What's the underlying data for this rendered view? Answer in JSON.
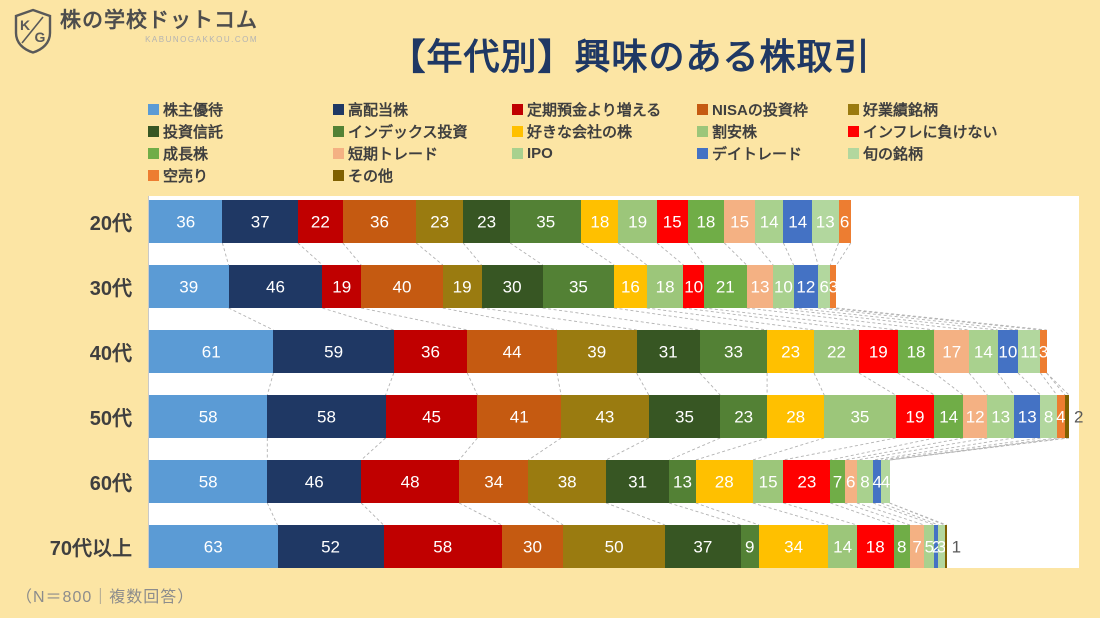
{
  "page": {
    "background_color": "#FCE5A4"
  },
  "logo": {
    "icon": "KG-shield",
    "title": "株の学校ドットコム",
    "subtitle": "KABUNOGAKKOU.COM"
  },
  "title": "【年代別】興味のある株取引",
  "footnote": "（N＝800｜複数回答）",
  "chart_data": {
    "type": "bar",
    "variant": "stacked-horizontal",
    "plot_background": "#FFFFFF",
    "legend_position": "top",
    "legend_columns": 5,
    "value_labels": "inside-center-white; その他 labels shown outside bar end in gray",
    "series_connector_lines": "dashed gray lines linking segment boundaries between rows",
    "categories": [
      "20代",
      "30代",
      "40代",
      "50代",
      "60代",
      "70代以上"
    ],
    "series": [
      {
        "name": "株主優待",
        "color": "#5B9BD5",
        "values": [
          36,
          39,
          61,
          58,
          58,
          63
        ]
      },
      {
        "name": "高配当株",
        "color": "#1F3864",
        "values": [
          37,
          46,
          59,
          58,
          46,
          52
        ]
      },
      {
        "name": "定期預金より増える",
        "color": "#C00000",
        "values": [
          22,
          19,
          36,
          45,
          48,
          58
        ]
      },
      {
        "name": "NISAの投資枠",
        "color": "#C55A11",
        "values": [
          36,
          40,
          44,
          41,
          34,
          30
        ]
      },
      {
        "name": "好業績銘柄",
        "color": "#9A7B10",
        "values": [
          23,
          19,
          39,
          43,
          38,
          50
        ]
      },
      {
        "name": "投資信託",
        "color": "#375623",
        "values": [
          23,
          30,
          31,
          35,
          31,
          37
        ]
      },
      {
        "name": "インデックス投資",
        "color": "#538135",
        "values": [
          35,
          35,
          33,
          23,
          13,
          9
        ]
      },
      {
        "name": "好きな会社の株",
        "color": "#FFC000",
        "values": [
          18,
          16,
          23,
          28,
          28,
          34
        ]
      },
      {
        "name": "割安株",
        "color": "#9CC67A",
        "values": [
          19,
          18,
          22,
          35,
          15,
          14
        ]
      },
      {
        "name": "インフレに負けない",
        "color": "#FF0000",
        "values": [
          15,
          10,
          19,
          19,
          23,
          18
        ]
      },
      {
        "name": "成長株",
        "color": "#70AD47",
        "values": [
          18,
          21,
          18,
          14,
          7,
          8
        ]
      },
      {
        "name": "短期トレード",
        "color": "#F4B183",
        "values": [
          15,
          13,
          17,
          12,
          6,
          7
        ]
      },
      {
        "name": "IPO",
        "color": "#A9D18E",
        "values": [
          14,
          10,
          14,
          13,
          8,
          5
        ]
      },
      {
        "name": "デイトレード",
        "color": "#4472C4",
        "values": [
          14,
          12,
          10,
          13,
          4,
          2
        ]
      },
      {
        "name": "旬の銘柄",
        "color": "#B2D79E",
        "values": [
          13,
          6,
          11,
          8,
          4,
          3
        ]
      },
      {
        "name": "空売り",
        "color": "#ED7D31",
        "values": [
          6,
          3,
          3,
          4,
          0,
          0
        ]
      },
      {
        "name": "その他",
        "color": "#7F6000",
        "values": [
          0,
          0,
          0,
          2,
          0,
          1
        ]
      }
    ]
  }
}
